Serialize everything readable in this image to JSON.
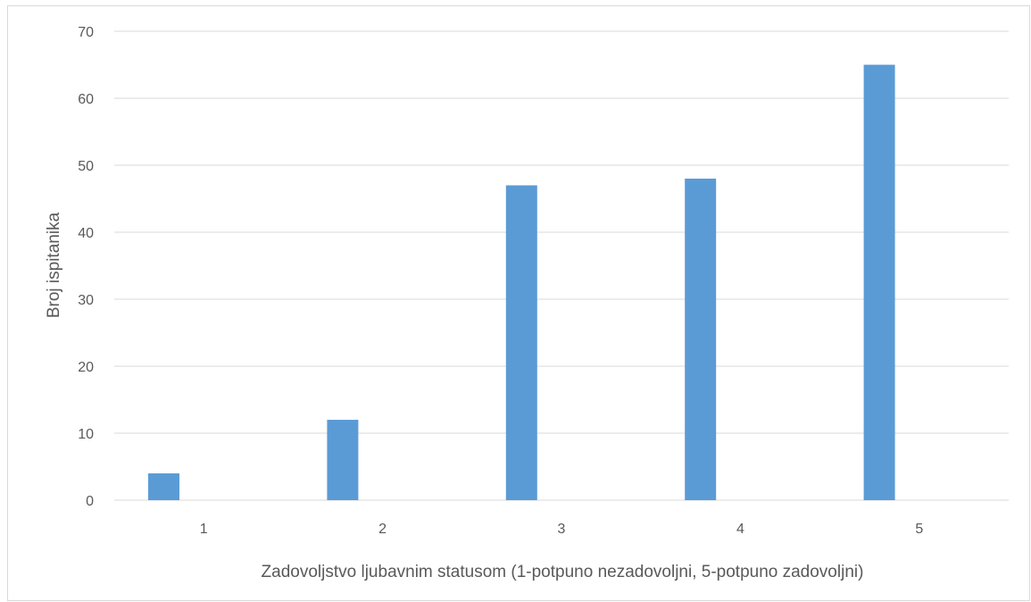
{
  "chart_data": {
    "type": "bar",
    "title": "",
    "xlabel": "Zadovoljstvo ljubavnim statusom (1-potpuno nezadovoljni, 5-potpuno zadovoljni)",
    "ylabel": "Broj ispitanika",
    "categories": [
      "1",
      "2",
      "3",
      "4",
      "5"
    ],
    "values": [
      4,
      12,
      47,
      48,
      65
    ],
    "ylim": [
      0,
      70
    ],
    "yticks": [
      "0",
      "10",
      "20",
      "30",
      "40",
      "50",
      "60",
      "70"
    ],
    "grid": true,
    "legend": "none",
    "bar_color": "#5b9bd5",
    "grid_color": "#d9d9d9"
  }
}
